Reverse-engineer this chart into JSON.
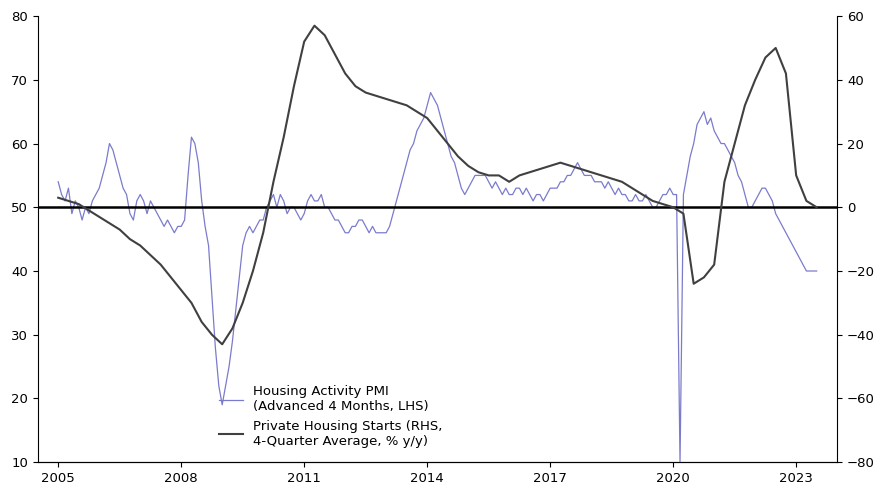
{
  "lhs_ylim": [
    10,
    80
  ],
  "rhs_ylim": [
    -80,
    60
  ],
  "lhs_yticks": [
    10,
    20,
    30,
    40,
    50,
    60,
    70,
    80
  ],
  "rhs_yticks": [
    -80,
    -60,
    -40,
    -20,
    0,
    20,
    40,
    60
  ],
  "xlim": [
    2004.5,
    2024.0
  ],
  "xticks": [
    2005,
    2008,
    2011,
    2014,
    2017,
    2020,
    2023
  ],
  "hline_lhs": 50,
  "blue_color": "#7b7bcd",
  "dark_color": "#404040",
  "legend_labels": [
    "Housing Activity PMI\n(Advanced 4 Months, LHS)",
    "Private Housing Starts (RHS,\n4-Quarter Average, % y/y)"
  ],
  "pmi_x": [
    2005.0,
    2005.083,
    2005.167,
    2005.25,
    2005.333,
    2005.417,
    2005.5,
    2005.583,
    2005.667,
    2005.75,
    2005.833,
    2005.917,
    2006.0,
    2006.083,
    2006.167,
    2006.25,
    2006.333,
    2006.417,
    2006.5,
    2006.583,
    2006.667,
    2006.75,
    2006.833,
    2006.917,
    2007.0,
    2007.083,
    2007.167,
    2007.25,
    2007.333,
    2007.417,
    2007.5,
    2007.583,
    2007.667,
    2007.75,
    2007.833,
    2007.917,
    2008.0,
    2008.083,
    2008.167,
    2008.25,
    2008.333,
    2008.417,
    2008.5,
    2008.583,
    2008.667,
    2008.75,
    2008.833,
    2008.917,
    2009.0,
    2009.083,
    2009.167,
    2009.25,
    2009.333,
    2009.417,
    2009.5,
    2009.583,
    2009.667,
    2009.75,
    2009.833,
    2009.917,
    2010.0,
    2010.083,
    2010.167,
    2010.25,
    2010.333,
    2010.417,
    2010.5,
    2010.583,
    2010.667,
    2010.75,
    2010.833,
    2010.917,
    2011.0,
    2011.083,
    2011.167,
    2011.25,
    2011.333,
    2011.417,
    2011.5,
    2011.583,
    2011.667,
    2011.75,
    2011.833,
    2011.917,
    2012.0,
    2012.083,
    2012.167,
    2012.25,
    2012.333,
    2012.417,
    2012.5,
    2012.583,
    2012.667,
    2012.75,
    2012.833,
    2012.917,
    2013.0,
    2013.083,
    2013.167,
    2013.25,
    2013.333,
    2013.417,
    2013.5,
    2013.583,
    2013.667,
    2013.75,
    2013.833,
    2013.917,
    2014.0,
    2014.083,
    2014.167,
    2014.25,
    2014.333,
    2014.417,
    2014.5,
    2014.583,
    2014.667,
    2014.75,
    2014.833,
    2014.917,
    2015.0,
    2015.083,
    2015.167,
    2015.25,
    2015.333,
    2015.417,
    2015.5,
    2015.583,
    2015.667,
    2015.75,
    2015.833,
    2015.917,
    2016.0,
    2016.083,
    2016.167,
    2016.25,
    2016.333,
    2016.417,
    2016.5,
    2016.583,
    2016.667,
    2016.75,
    2016.833,
    2016.917,
    2017.0,
    2017.083,
    2017.167,
    2017.25,
    2017.333,
    2017.417,
    2017.5,
    2017.583,
    2017.667,
    2017.75,
    2017.833,
    2017.917,
    2018.0,
    2018.083,
    2018.167,
    2018.25,
    2018.333,
    2018.417,
    2018.5,
    2018.583,
    2018.667,
    2018.75,
    2018.833,
    2018.917,
    2019.0,
    2019.083,
    2019.167,
    2019.25,
    2019.333,
    2019.417,
    2019.5,
    2019.583,
    2019.667,
    2019.75,
    2019.833,
    2019.917,
    2020.0,
    2020.083,
    2020.167,
    2020.25,
    2020.333,
    2020.417,
    2020.5,
    2020.583,
    2020.667,
    2020.75,
    2020.833,
    2020.917,
    2021.0,
    2021.083,
    2021.167,
    2021.25,
    2021.333,
    2021.417,
    2021.5,
    2021.583,
    2021.667,
    2021.75,
    2021.833,
    2021.917,
    2022.0,
    2022.083,
    2022.167,
    2022.25,
    2022.333,
    2022.417,
    2022.5,
    2022.583,
    2022.667,
    2022.75,
    2022.833,
    2022.917,
    2023.0,
    2023.083,
    2023.167,
    2023.25,
    2023.333,
    2023.417,
    2023.5
  ],
  "pmi_y": [
    54,
    52,
    51,
    53,
    49,
    51,
    50,
    48,
    50,
    49,
    51,
    52,
    53,
    55,
    57,
    60,
    59,
    57,
    55,
    53,
    52,
    49,
    48,
    51,
    52,
    51,
    49,
    51,
    50,
    49,
    48,
    47,
    48,
    47,
    46,
    47,
    47,
    48,
    55,
    61,
    60,
    57,
    51,
    47,
    44,
    36,
    28,
    22,
    19,
    22,
    25,
    29,
    34,
    39,
    44,
    46,
    47,
    46,
    47,
    48,
    48,
    50,
    51,
    52,
    50,
    52,
    51,
    49,
    50,
    50,
    49,
    48,
    49,
    51,
    52,
    51,
    51,
    52,
    50,
    50,
    49,
    48,
    48,
    47,
    46,
    46,
    47,
    47,
    48,
    48,
    47,
    46,
    47,
    46,
    46,
    46,
    46,
    47,
    49,
    51,
    53,
    55,
    57,
    59,
    60,
    62,
    63,
    64,
    66,
    68,
    67,
    66,
    64,
    62,
    60,
    58,
    57,
    55,
    53,
    52,
    53,
    54,
    55,
    55,
    55,
    55,
    54,
    53,
    54,
    53,
    52,
    53,
    52,
    52,
    53,
    53,
    52,
    53,
    52,
    51,
    52,
    52,
    51,
    52,
    53,
    53,
    53,
    54,
    54,
    55,
    55,
    56,
    57,
    56,
    55,
    55,
    55,
    54,
    54,
    54,
    53,
    54,
    53,
    52,
    53,
    52,
    52,
    51,
    51,
    52,
    51,
    51,
    52,
    51,
    50,
    50,
    51,
    52,
    52,
    53,
    52,
    52,
    10,
    52,
    55,
    58,
    60,
    63,
    64,
    65,
    63,
    64,
    62,
    61,
    60,
    60,
    59,
    58,
    57,
    55,
    54,
    52,
    50,
    50,
    51,
    52,
    53,
    53,
    52,
    51,
    49,
    48,
    47,
    46,
    45,
    44,
    43,
    42,
    41,
    40,
    40,
    40,
    40
  ],
  "starts_x": [
    2005.0,
    2005.25,
    2005.5,
    2005.75,
    2006.0,
    2006.25,
    2006.5,
    2006.75,
    2007.0,
    2007.25,
    2007.5,
    2007.75,
    2008.0,
    2008.25,
    2008.5,
    2008.75,
    2009.0,
    2009.25,
    2009.5,
    2009.75,
    2010.0,
    2010.25,
    2010.5,
    2010.75,
    2011.0,
    2011.25,
    2011.5,
    2011.75,
    2012.0,
    2012.25,
    2012.5,
    2012.75,
    2013.0,
    2013.25,
    2013.5,
    2013.75,
    2014.0,
    2014.25,
    2014.5,
    2014.75,
    2015.0,
    2015.25,
    2015.5,
    2015.75,
    2016.0,
    2016.25,
    2016.5,
    2016.75,
    2017.0,
    2017.25,
    2017.5,
    2017.75,
    2018.0,
    2018.25,
    2018.5,
    2018.75,
    2019.0,
    2019.25,
    2019.5,
    2019.75,
    2020.0,
    2020.25,
    2020.5,
    2020.75,
    2021.0,
    2021.25,
    2021.5,
    2021.75,
    2022.0,
    2022.25,
    2022.5,
    2022.75,
    2023.0,
    2023.25,
    2023.5
  ],
  "starts_y": [
    3,
    2,
    1,
    -1,
    -3,
    -5,
    -7,
    -10,
    -12,
    -15,
    -18,
    -22,
    -26,
    -30,
    -36,
    -40,
    -43,
    -38,
    -30,
    -20,
    -8,
    8,
    22,
    38,
    52,
    57,
    54,
    48,
    42,
    38,
    36,
    35,
    34,
    33,
    32,
    30,
    28,
    24,
    20,
    16,
    13,
    11,
    10,
    10,
    8,
    10,
    11,
    12,
    13,
    14,
    13,
    12,
    11,
    10,
    9,
    8,
    6,
    4,
    2,
    1,
    0,
    -2,
    -24,
    -22,
    -18,
    8,
    20,
    32,
    40,
    47,
    50,
    42,
    10,
    2,
    0
  ]
}
